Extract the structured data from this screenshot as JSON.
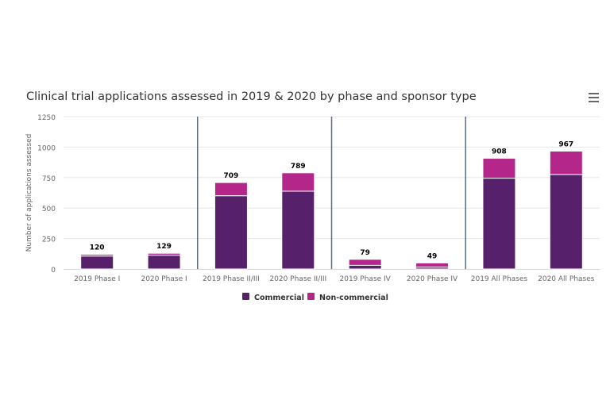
{
  "chart_data": {
    "type": "bar",
    "stacked": true,
    "title": "Clinical trial applications assessed in 2019 & 2020 by phase and sponsor type",
    "xlabel": "",
    "ylabel": "Number of applications assessed",
    "ylim": [
      0,
      1250
    ],
    "yticks": [
      0,
      250,
      500,
      750,
      1000,
      1250
    ],
    "grid": true,
    "legend_position": "bottom",
    "categories": [
      "2019 Phase I",
      "2020 Phase I",
      "2019 Phase II/III",
      "2020 Phase II/III",
      "2019 Phase IV",
      "2020 Phase IV",
      "2019 All Phases",
      "2020 All Phases"
    ],
    "group_separators_after": [
      "2020 Phase I",
      "2020 Phase II/III",
      "2020 Phase IV"
    ],
    "series": [
      {
        "name": "Commercial",
        "color": "#56206b",
        "values": [
          106,
          113,
          601,
          638,
          30,
          15,
          745,
          775
        ]
      },
      {
        "name": "Non-commercial",
        "color": "#b5268b",
        "values": [
          14,
          16,
          108,
          151,
          49,
          34,
          163,
          192
        ]
      }
    ],
    "totals": [
      120,
      129,
      709,
      789,
      79,
      49,
      908,
      967
    ]
  },
  "menu_icon": "hamburger-menu-icon"
}
